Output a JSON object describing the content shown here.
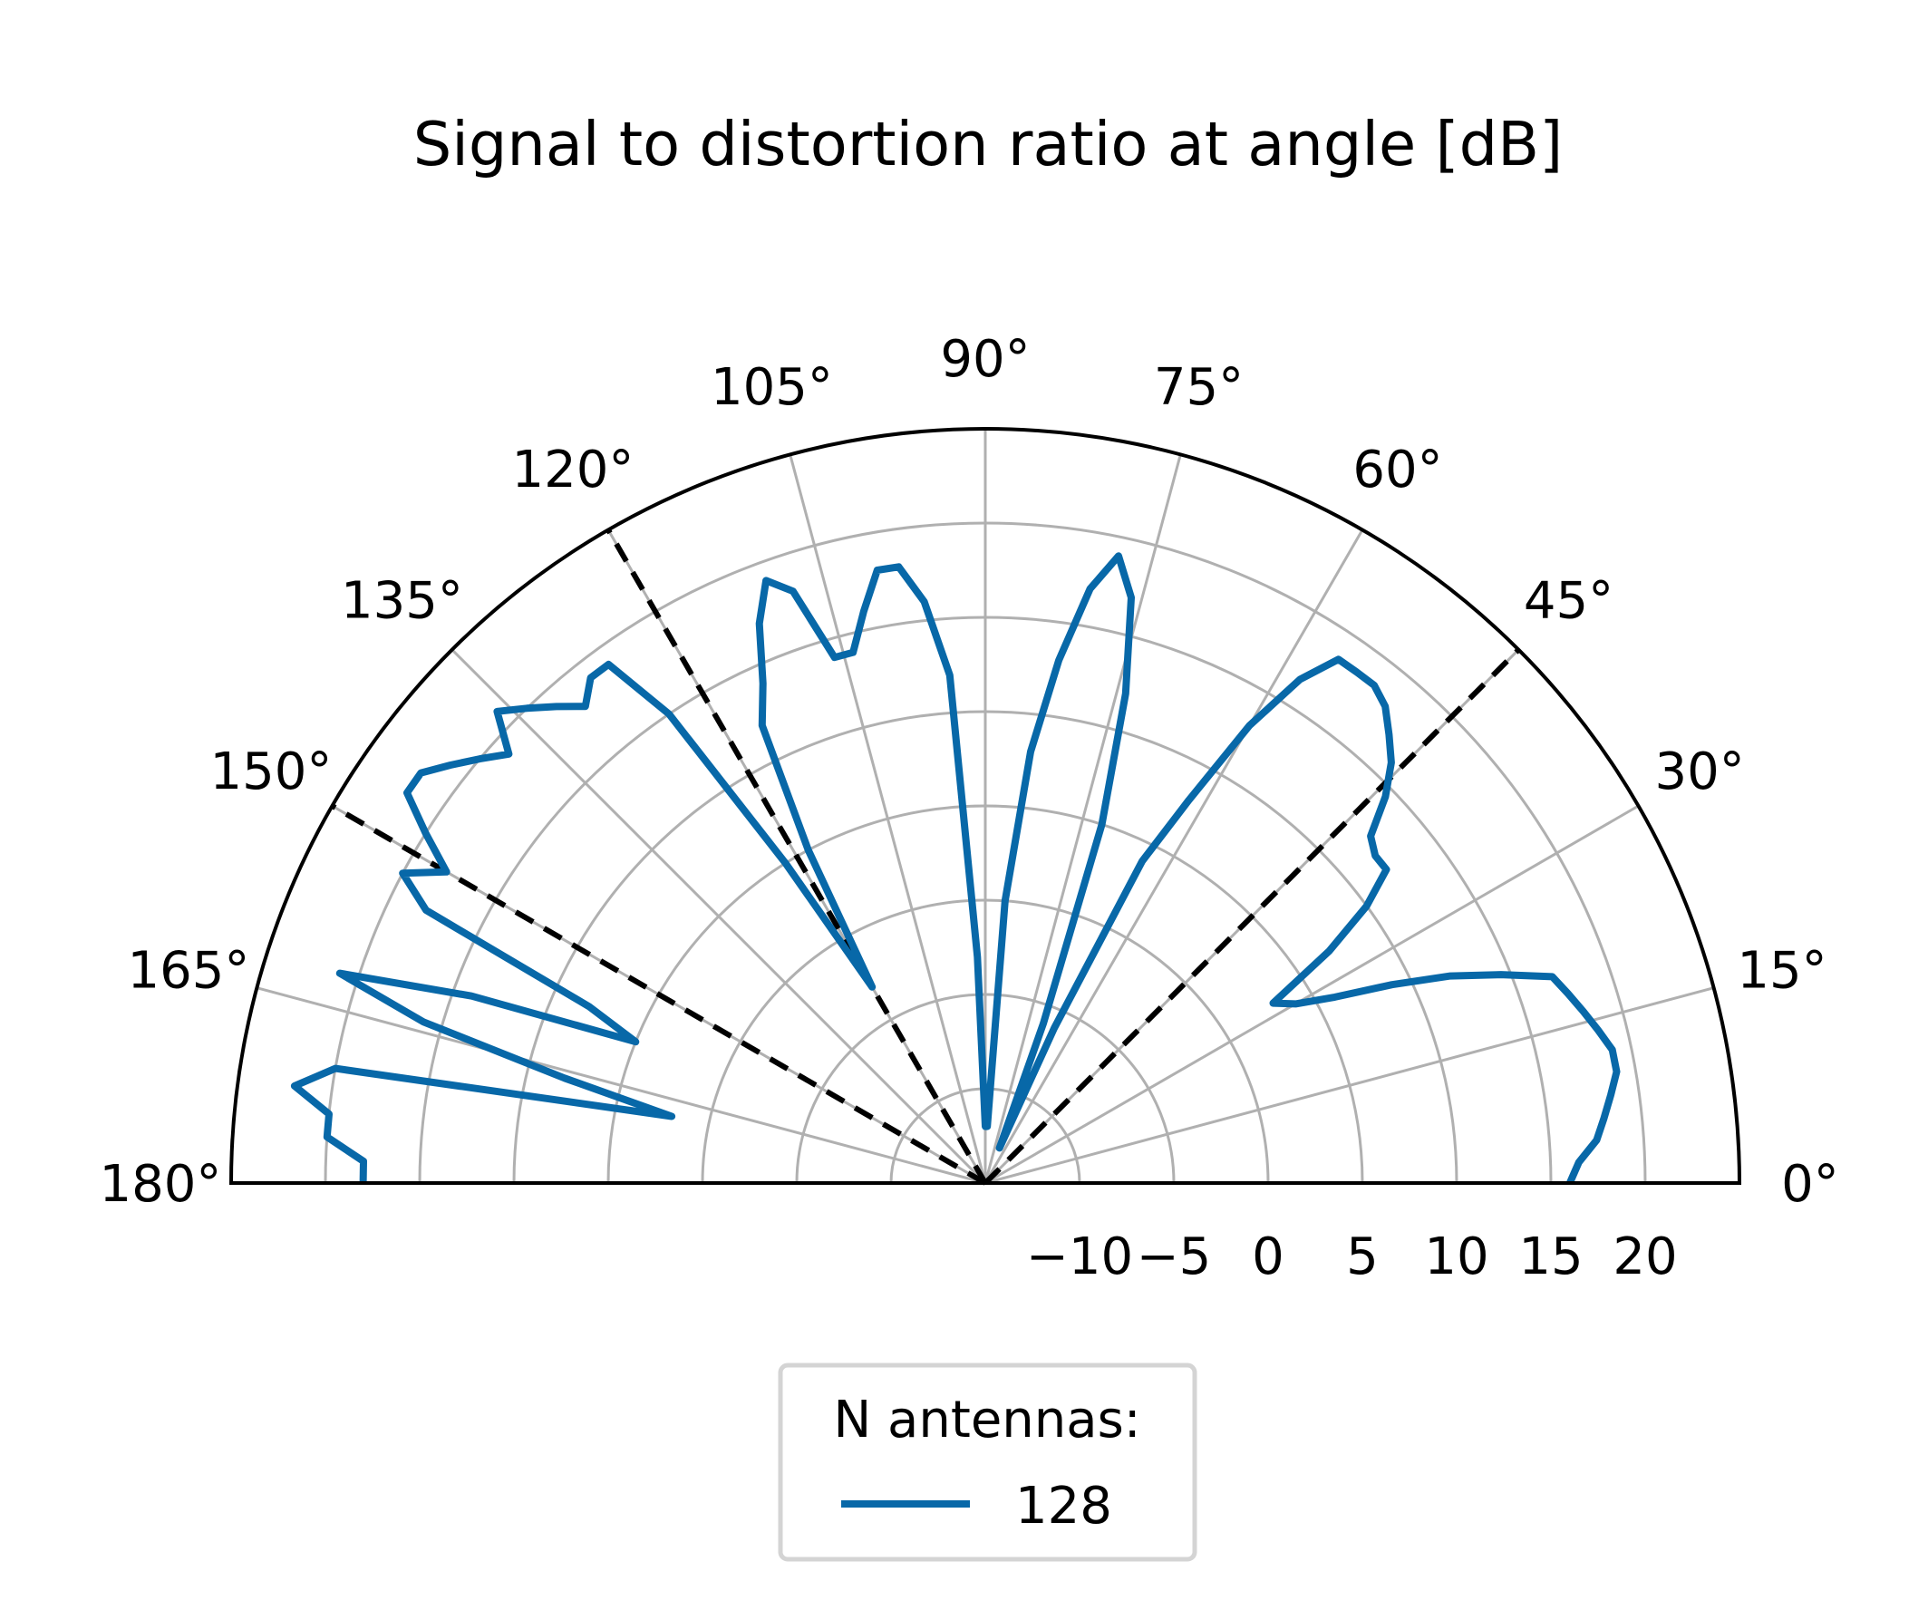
{
  "chart_data": {
    "type": "line",
    "projection": "polar",
    "title": "Signal to distortion ratio at angle [dB]",
    "theta_range_deg": [
      0,
      180
    ],
    "r_range": [
      -15,
      25
    ],
    "theta_ticks": [
      "0°",
      "15°",
      "30°",
      "45°",
      "60°",
      "75°",
      "90°",
      "105°",
      "120°",
      "135°",
      "150°",
      "165°",
      "180°"
    ],
    "theta_tick_values": [
      0,
      15,
      30,
      45,
      60,
      75,
      90,
      105,
      120,
      135,
      150,
      165,
      180
    ],
    "r_ticks": [
      "−10",
      "−5",
      "0",
      "5",
      "10",
      "15",
      "20"
    ],
    "r_tick_values": [
      -10,
      -5,
      0,
      5,
      10,
      15,
      20
    ],
    "grid": true,
    "legend": {
      "title": "N antennas:",
      "placement": "bottom-center",
      "entries": [
        "128"
      ]
    },
    "reference_lines": {
      "style": "dashed",
      "color": "#000000",
      "angles_deg": [
        45,
        120,
        150
      ]
    },
    "series": [
      {
        "name": "128",
        "color": "#0868a8",
        "theta_deg": [
          0,
          2,
          4,
          6,
          8,
          10,
          12,
          14,
          16,
          18,
          20,
          22,
          24,
          26,
          28,
          30,
          32,
          34,
          36,
          38,
          40,
          42,
          44,
          46,
          48,
          50,
          52,
          54,
          56,
          58,
          60,
          62,
          64,
          66,
          68,
          70,
          72,
          74,
          76,
          78,
          80,
          82,
          84,
          86,
          88,
          90,
          92,
          94,
          96,
          98,
          100,
          102,
          104,
          106,
          108,
          110,
          112,
          114,
          116,
          118,
          120,
          122,
          124,
          126,
          128,
          130,
          132,
          134,
          136,
          138,
          140,
          142,
          144,
          146,
          148,
          150,
          152,
          154,
          156,
          158,
          160,
          162,
          164,
          166,
          168,
          170,
          172,
          174,
          176,
          178,
          180
        ],
        "r": [
          16,
          16.5,
          17.5,
          18,
          18.5,
          19,
          19,
          18.5,
          18,
          17.5,
          17,
          14.5,
          12,
          9,
          6,
          4,
          3,
          7,
          10,
          12,
          12,
          12.5,
          14.5,
          16,
          17,
          18,
          18.5,
          18.5,
          18.5,
          16.5,
          13,
          8,
          4,
          -6,
          -13,
          -6,
          5,
          12,
          17,
          19,
          17,
          13,
          8,
          0,
          -12,
          -12,
          -3,
          12,
          16,
          18,
          18,
          16,
          14,
          14,
          18,
          19,
          17,
          14,
          12,
          5,
          -3,
          5,
          15,
          19,
          19,
          18,
          19,
          20,
          21,
          19,
          20,
          21,
          22,
          22,
          20,
          18,
          20,
          18,
          8,
          5,
          14,
          21,
          16,
          8,
          2,
          20,
          22,
          20,
          20,
          18,
          18
        ]
      }
    ]
  }
}
